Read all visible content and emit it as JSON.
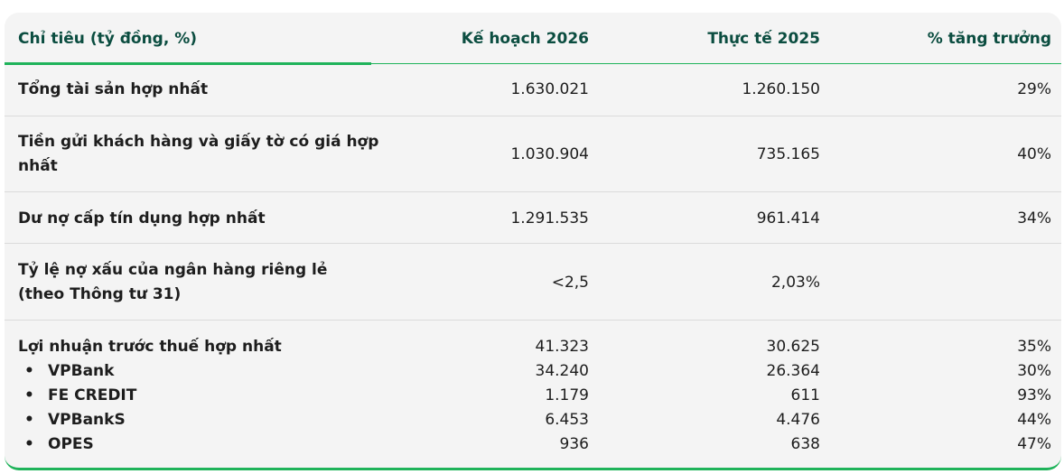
{
  "header": {
    "indicator": "Chỉ tiêu (tỷ đồng, %)",
    "plan": "Kế hoạch 2026",
    "actual": "Thực tế 2025",
    "growth": "% tăng trưởng"
  },
  "rows": [
    {
      "label": "Tổng tài sản hợp nhất",
      "plan": "1.630.021",
      "actual": "1.260.150",
      "growth": "29%"
    },
    {
      "label": "Tiền gửi khách hàng và giấy tờ có giá hợp nhất",
      "plan": "1.030.904",
      "actual": "735.165",
      "growth": "40%"
    },
    {
      "label": "Dư nợ cấp tín dụng hợp nhất",
      "plan": "1.291.535",
      "actual": "961.414",
      "growth": "34%"
    },
    {
      "label": "Tỷ lệ nợ xấu của ngân hàng riêng lẻ (theo Thông tư 31)",
      "plan": "<2,5",
      "actual": "2,03%",
      "growth": ""
    },
    {
      "label": "Lợi nhuận trước thuế hợp nhất",
      "plan": "41.323",
      "actual": "30.625",
      "growth": "35%"
    }
  ],
  "bullet": "•",
  "subrows": [
    {
      "label": "VPBank",
      "plan": "34.240",
      "actual": "26.364",
      "growth": "30%"
    },
    {
      "label": "FE CREDIT",
      "plan": "1.179",
      "actual": "611",
      "growth": "93%"
    },
    {
      "label": "VPBankS",
      "plan": "6.453",
      "actual": "4.476",
      "growth": "44%"
    },
    {
      "label": "OPES",
      "plan": "936",
      "actual": "638",
      "growth": "47%"
    }
  ],
  "colors": {
    "header_text": "#0b4d40",
    "accent": "#1fb35a",
    "background": "#f4f4f4"
  }
}
